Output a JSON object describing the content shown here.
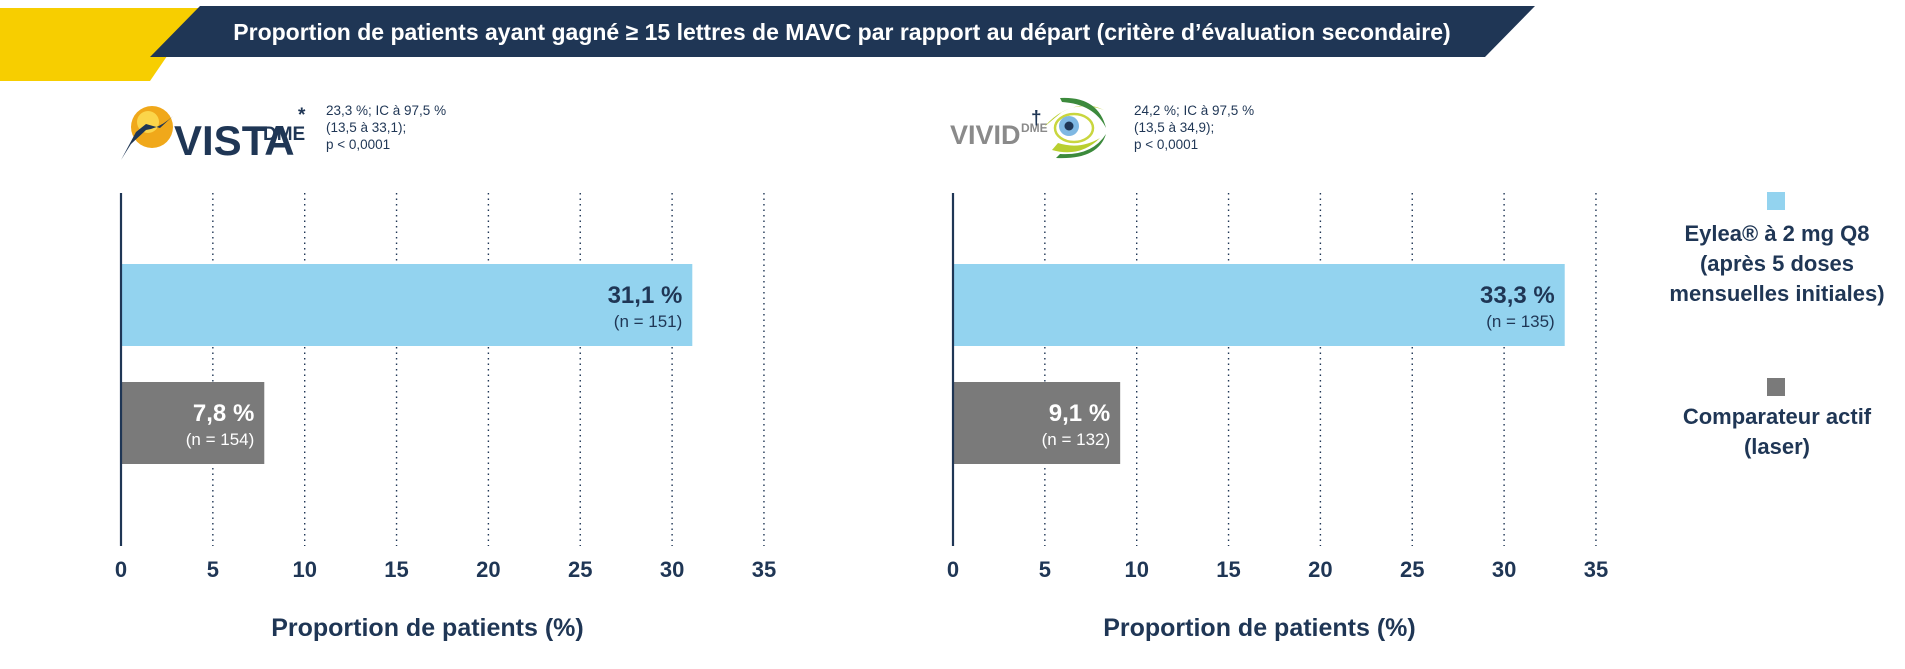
{
  "title": "Proportion de patients ayant gagné ≥ 15 lettres de MAVC par rapport au départ (critère d’évaluation secondaire)",
  "colors": {
    "navy": "#1f3655",
    "eylea": "#93d3ef",
    "comparator": "#7a7a7a",
    "accent_yellow": "#f7ce00"
  },
  "panels": [
    {
      "logo": {
        "main": "VISTA",
        "sub": "DME",
        "mark": "*"
      },
      "stats": [
        "23,3 %; IC à 97,5 %",
        "(13,5 à 33,1);",
        "p < 0,0001"
      ],
      "bars": [
        {
          "label": "31,1 %",
          "n": "(n = 151)"
        },
        {
          "label": "7,8 %",
          "n": "(n = 154)"
        }
      ]
    },
    {
      "logo": {
        "main": "VIVID",
        "sub": "DME",
        "mark": "†"
      },
      "stats": [
        "24,2 %; IC à 97,5 %",
        "(13,5 à 34,9);",
        "p < 0,0001"
      ],
      "bars": [
        {
          "label": "33,3 %",
          "n": "(n = 135)"
        },
        {
          "label": "9,1 %",
          "n": "(n = 132)"
        }
      ]
    }
  ],
  "chart_data": [
    {
      "type": "bar",
      "orientation": "horizontal",
      "categories": [
        "Eylea® à 2 mg Q8 (après 5 doses mensuelles initiales)",
        "Comparateur actif (laser)"
      ],
      "values": [
        31.1,
        7.8
      ],
      "xlabel": "Proportion de patients (%)",
      "xlim": [
        0,
        35
      ],
      "ticks": [
        "0",
        "5",
        "10",
        "15",
        "20",
        "25",
        "30",
        "35"
      ],
      "grid": true
    },
    {
      "type": "bar",
      "orientation": "horizontal",
      "categories": [
        "Eylea® à 2 mg Q8 (après 5 doses mensuelles initiales)",
        "Comparateur actif (laser)"
      ],
      "values": [
        33.3,
        9.1
      ],
      "xlabel": "Proportion de patients (%)",
      "xlim": [
        0,
        35
      ],
      "ticks": [
        "0",
        "5",
        "10",
        "15",
        "20",
        "25",
        "30",
        "35"
      ],
      "grid": true
    }
  ],
  "legend": [
    {
      "lines": [
        "Eylea® à 2 mg Q8",
        "(après 5 doses",
        "mensuelles initiales)"
      ]
    },
    {
      "lines": [
        "Comparateur actif",
        "(laser)"
      ]
    }
  ]
}
